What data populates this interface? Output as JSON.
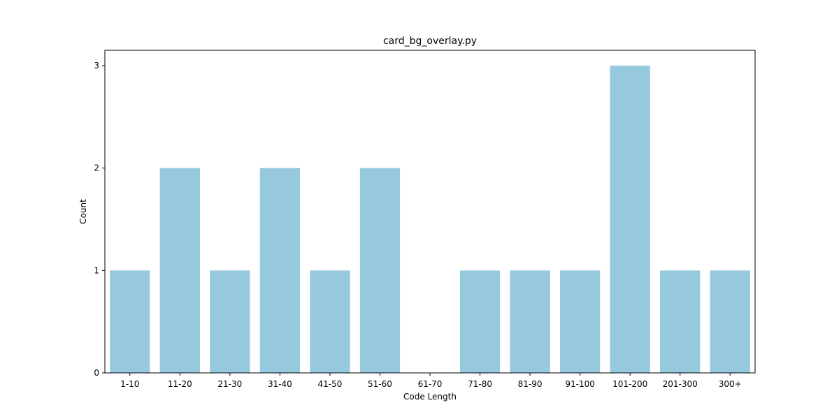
{
  "chart_data": {
    "type": "bar",
    "title": "card_bg_overlay.py",
    "xlabel": "Code Length",
    "ylabel": "Count",
    "categories": [
      "1-10",
      "11-20",
      "21-30",
      "31-40",
      "41-50",
      "51-60",
      "61-70",
      "71-80",
      "81-90",
      "91-100",
      "101-200",
      "201-300",
      "300+"
    ],
    "values": [
      1,
      2,
      1,
      2,
      1,
      2,
      0,
      1,
      1,
      1,
      3,
      1,
      1
    ],
    "ylim": [
      0,
      3.15
    ],
    "yticks": [
      0,
      1,
      2,
      3
    ],
    "grid": false,
    "legend": "none",
    "bar_color": "#96c9de"
  }
}
